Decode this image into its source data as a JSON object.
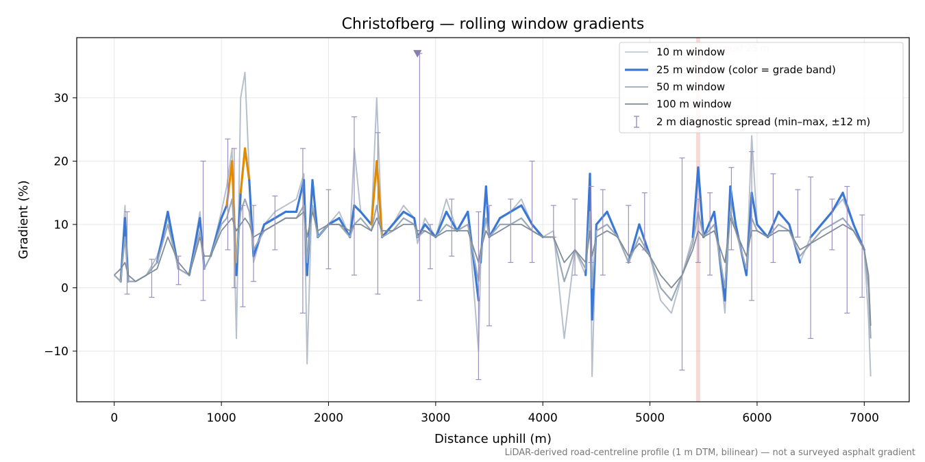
{
  "chart_data": {
    "type": "line",
    "title": "Christofberg — rolling window gradients",
    "xlabel": "Distance uphill (m)",
    "ylabel": "Gradient (%)",
    "xlim": [
      -350,
      7420
    ],
    "ylim": [
      -18,
      39.5
    ],
    "xticks": [
      0,
      1000,
      2000,
      3000,
      4000,
      5000,
      6000,
      7000
    ],
    "yticks": [
      -10,
      0,
      10,
      20,
      30
    ],
    "ytick_labels": [
      "−10",
      "0",
      "10",
      "20",
      "30"
    ],
    "grid": true,
    "legend_position": "top-right",
    "colors": {
      "w10": "#b5c0cc",
      "w25_band_blue": "#3a78d4",
      "w25_band_orange": "#e08a00",
      "w50": "#9aa8b8",
      "w100": "#7f8c99",
      "diagnostic": "#9c8fbe",
      "steepest_marker": "#e58080"
    },
    "steepest_25m": {
      "x": 5450,
      "label": "steepest 25 m"
    },
    "clipped_marker": {
      "x": 2830,
      "value": 37
    },
    "series": [
      {
        "name": "10 m window",
        "x": [
          0,
          60,
          100,
          130,
          200,
          300,
          400,
          500,
          600,
          700,
          800,
          840,
          900,
          1000,
          1050,
          1100,
          1140,
          1180,
          1220,
          1260,
          1300,
          1400,
          1500,
          1600,
          1700,
          1770,
          1800,
          1850,
          1900,
          2000,
          2100,
          2200,
          2240,
          2300,
          2400,
          2450,
          2500,
          2600,
          2700,
          2800,
          2830,
          2900,
          3000,
          3100,
          3200,
          3300,
          3400,
          3420,
          3470,
          3500,
          3600,
          3700,
          3800,
          3900,
          4000,
          4100,
          4200,
          4300,
          4400,
          4440,
          4460,
          4500,
          4600,
          4700,
          4800,
          4900,
          5000,
          5100,
          5200,
          5300,
          5400,
          5450,
          5500,
          5600,
          5700,
          5750,
          5800,
          5900,
          5950,
          6000,
          6100,
          6200,
          6300,
          6400,
          6500,
          6600,
          6700,
          6800,
          6900,
          7000,
          7040,
          7060
        ],
        "values": [
          2,
          1,
          13,
          1,
          1,
          2,
          5,
          11,
          3,
          2,
          12,
          3,
          5,
          12,
          16,
          22,
          -8,
          30,
          34,
          18,
          4,
          10,
          12,
          13,
          14,
          18,
          -12,
          17,
          8,
          10,
          12,
          8,
          22,
          12,
          10,
          30,
          8,
          10,
          13,
          11,
          7,
          11,
          8,
          14,
          9,
          12,
          -10,
          4,
          16,
          8,
          11,
          12,
          14,
          10,
          8,
          9,
          -8,
          6,
          2,
          16,
          -14,
          10,
          12,
          8,
          4,
          10,
          5,
          -2,
          -4,
          2,
          8,
          17,
          8,
          12,
          -4,
          14,
          10,
          2,
          24,
          10,
          8,
          12,
          10,
          4,
          8,
          10,
          12,
          14,
          10,
          6,
          -5,
          -14
        ]
      },
      {
        "name": "25 m window (color = grade band)",
        "x": [
          0,
          60,
          100,
          130,
          200,
          300,
          400,
          500,
          600,
          700,
          800,
          840,
          900,
          1000,
          1050,
          1100,
          1140,
          1180,
          1220,
          1260,
          1300,
          1400,
          1500,
          1600,
          1700,
          1770,
          1800,
          1850,
          1900,
          2000,
          2100,
          2200,
          2240,
          2300,
          2400,
          2450,
          2500,
          2600,
          2700,
          2800,
          2830,
          2900,
          3000,
          3100,
          3200,
          3300,
          3400,
          3420,
          3470,
          3500,
          3600,
          3700,
          3800,
          3900,
          4000,
          4100,
          4200,
          4300,
          4400,
          4440,
          4460,
          4500,
          4600,
          4700,
          4800,
          4900,
          5000,
          5100,
          5200,
          5300,
          5400,
          5450,
          5500,
          5600,
          5700,
          5750,
          5800,
          5900,
          5950,
          6000,
          6100,
          6200,
          6300,
          6400,
          6500,
          6600,
          6700,
          6800,
          6900,
          7000,
          7040,
          7060
        ],
        "values": [
          2,
          1,
          11,
          1,
          1,
          2,
          4,
          12,
          3,
          2,
          11,
          3,
          5,
          11,
          13,
          20,
          2,
          15,
          22,
          17,
          5,
          10,
          11,
          12,
          12,
          17,
          2,
          17,
          8,
          10,
          11,
          8,
          13,
          12,
          10,
          20,
          8,
          10,
          12,
          11,
          8,
          10,
          8,
          12,
          9,
          12,
          -2,
          4,
          16,
          8,
          11,
          12,
          13,
          10,
          8,
          9,
          -2,
          6,
          2,
          18,
          -5,
          10,
          12,
          8,
          4,
          10,
          5,
          -1,
          -3,
          2,
          8,
          19,
          8,
          12,
          -2,
          16,
          10,
          2,
          15,
          10,
          8,
          12,
          10,
          4,
          8,
          10,
          12,
          15,
          10,
          6,
          -3,
          -10
        ]
      },
      {
        "name": "50 m window",
        "x": [
          0,
          60,
          100,
          130,
          200,
          300,
          400,
          500,
          600,
          700,
          800,
          840,
          900,
          1000,
          1050,
          1100,
          1140,
          1180,
          1220,
          1260,
          1300,
          1400,
          1500,
          1600,
          1700,
          1770,
          1800,
          1850,
          1900,
          2000,
          2100,
          2200,
          2240,
          2300,
          2400,
          2450,
          2500,
          2600,
          2700,
          2800,
          2830,
          2900,
          3000,
          3100,
          3200,
          3300,
          3400,
          3420,
          3470,
          3500,
          3600,
          3700,
          3800,
          3900,
          4000,
          4100,
          4200,
          4300,
          4400,
          4440,
          4460,
          4500,
          4600,
          4700,
          4800,
          4900,
          5000,
          5100,
          5200,
          5300,
          5400,
          5450,
          5500,
          5600,
          5700,
          5750,
          5800,
          5900,
          5950,
          6000,
          6100,
          6200,
          6300,
          6400,
          6500,
          6600,
          6700,
          6800,
          6900,
          7000,
          7040,
          7060
        ],
        "values": [
          2,
          1,
          8,
          1,
          1,
          2,
          4,
          10,
          3,
          2,
          9,
          3,
          5,
          10,
          11,
          14,
          4,
          12,
          14,
          12,
          6,
          9,
          10,
          11,
          11,
          13,
          4,
          13,
          8,
          10,
          10,
          8,
          10,
          11,
          9,
          13,
          8,
          9,
          11,
          10,
          8,
          9,
          8,
          10,
          9,
          10,
          1,
          5,
          11,
          8,
          10,
          10,
          11,
          9,
          8,
          8,
          1,
          6,
          3,
          12,
          0,
          9,
          10,
          8,
          4,
          8,
          5,
          0,
          -2,
          2,
          7,
          12,
          8,
          10,
          0,
          12,
          9,
          3,
          11,
          9,
          8,
          10,
          9,
          5,
          7,
          9,
          10,
          11,
          9,
          6,
          0,
          -8
        ]
      },
      {
        "name": "100 m window",
        "x": [
          0,
          60,
          100,
          130,
          200,
          300,
          400,
          500,
          600,
          700,
          800,
          840,
          900,
          1000,
          1050,
          1100,
          1140,
          1180,
          1220,
          1260,
          1300,
          1400,
          1500,
          1600,
          1700,
          1770,
          1800,
          1850,
          1900,
          2000,
          2100,
          2200,
          2240,
          2300,
          2400,
          2450,
          2500,
          2600,
          2700,
          2800,
          2830,
          2900,
          3000,
          3100,
          3200,
          3300,
          3400,
          3420,
          3470,
          3500,
          3600,
          3700,
          3800,
          3900,
          4000,
          4100,
          4200,
          4300,
          4400,
          4440,
          4460,
          4500,
          4600,
          4700,
          4800,
          4900,
          5000,
          5100,
          5200,
          5300,
          5400,
          5450,
          5500,
          5600,
          5700,
          5750,
          5800,
          5900,
          5950,
          6000,
          6100,
          6200,
          6300,
          6400,
          6500,
          6600,
          6700,
          6800,
          6900,
          7000,
          7040,
          7060
        ],
        "values": [
          2,
          3,
          4,
          2,
          1,
          2,
          3,
          8,
          4,
          2,
          8,
          5,
          5,
          9,
          10,
          11,
          9,
          10,
          11,
          10,
          8,
          9,
          10,
          11,
          11,
          12,
          8,
          12,
          9,
          10,
          10,
          9,
          10,
          10,
          9,
          11,
          9,
          9,
          10,
          10,
          9,
          9,
          8,
          9,
          9,
          9,
          4,
          6,
          9,
          8,
          9,
          10,
          10,
          9,
          8,
          8,
          4,
          6,
          4,
          9,
          5,
          8,
          9,
          8,
          5,
          7,
          5,
          2,
          0,
          2,
          6,
          9,
          8,
          9,
          4,
          11,
          9,
          5,
          9,
          9,
          8,
          9,
          9,
          6,
          7,
          8,
          9,
          10,
          9,
          6,
          2,
          -6
        ]
      }
    ],
    "diagnostic_spread": {
      "name": "2 m diagnostic spread (min–max, ±12 m)",
      "x": [
        120,
        350,
        600,
        830,
        1060,
        1120,
        1200,
        1300,
        1500,
        1760,
        2000,
        2240,
        2460,
        2850,
        2950,
        3150,
        3400,
        3500,
        3700,
        3900,
        4100,
        4300,
        4450,
        4560,
        4800,
        4950,
        5300,
        5450,
        5560,
        5760,
        5950,
        6150,
        6380,
        6500,
        6700,
        6840,
        6980
      ],
      "low": [
        -1,
        -1.5,
        0.5,
        -2,
        6,
        0,
        -3,
        1,
        6,
        -4,
        3,
        2,
        -1,
        -2,
        3,
        5,
        -14.5,
        -6,
        4,
        4,
        8,
        2,
        4,
        2,
        4,
        6,
        -13,
        4,
        2,
        6,
        -2,
        4,
        8,
        -8,
        6,
        -4,
        -1.5
      ],
      "high": [
        12,
        4.5,
        5,
        20,
        23.5,
        22,
        13,
        13,
        14.5,
        22,
        15.5,
        27,
        24.5,
        37,
        10,
        14,
        12,
        13,
        14,
        20,
        13,
        14,
        16,
        15.5,
        13,
        15,
        20.5,
        14,
        15,
        19,
        21.5,
        18,
        15.5,
        17.5,
        14,
        16,
        11.5
      ]
    },
    "footer": "LiDAR-derived road-centreline profile (1 m DTM, bilinear) — not a surveyed asphalt gradient"
  }
}
